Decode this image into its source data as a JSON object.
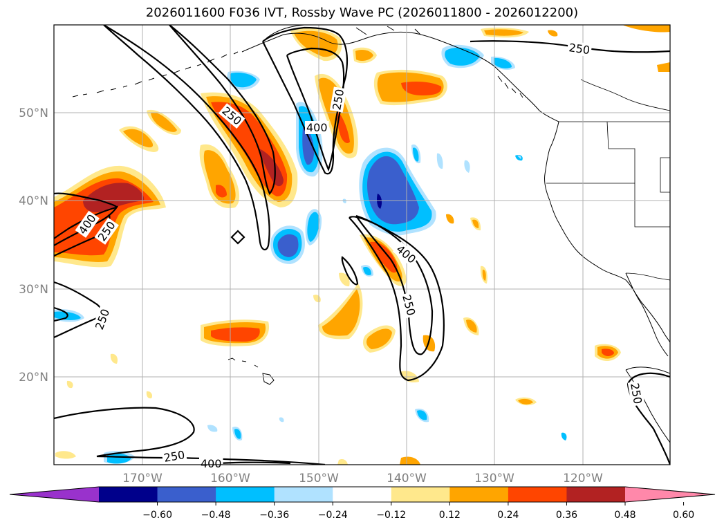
{
  "title": "2026011600 F036 IVT, Rossby Wave PC (2026011800 - 2026012200)",
  "map": {
    "lon_labels": [
      "170°W",
      "160°W",
      "150°W",
      "140°W",
      "130°W",
      "120°W"
    ],
    "lat_labels": [
      "50°N",
      "40°N",
      "30°N",
      "20°N"
    ],
    "contour_levels": [
      "250",
      "400"
    ],
    "contour_labels": [
      {
        "text": "250"
      },
      {
        "text": "400"
      },
      {
        "text": "250"
      },
      {
        "text": "400"
      },
      {
        "text": "250"
      },
      {
        "text": "250"
      },
      {
        "text": "400"
      },
      {
        "text": "250"
      },
      {
        "text": "250"
      },
      {
        "text": "250"
      },
      {
        "text": "400"
      },
      {
        "text": "250"
      }
    ]
  },
  "colorbar": {
    "ticks": [
      "−0.60",
      "−0.48",
      "−0.36",
      "−0.24",
      "−0.12",
      "0.12",
      "0.24",
      "0.36",
      "0.48",
      "0.60"
    ],
    "colors": [
      "#9932cc",
      "#00008b",
      "#3a5fcd",
      "#00bfff",
      "#b0e2ff",
      "#ffffff",
      "#ffe88c",
      "#ffa500",
      "#ff4500",
      "#b22222",
      "#ff88aa"
    ]
  }
}
